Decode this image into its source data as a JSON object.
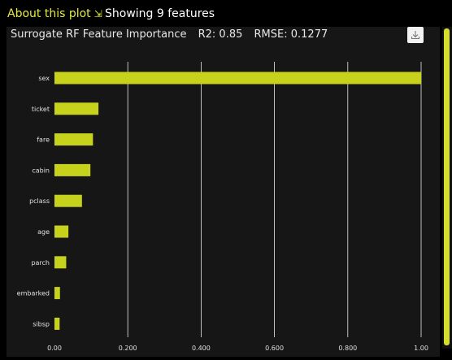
{
  "header": {
    "about_label": "About this plot",
    "about_arrow": "⇲",
    "feature_count": "Showing 9 features"
  },
  "panel": {
    "title": "Surrogate RF Feature Importance",
    "r2": "R2: 0.85",
    "rmse": "RMSE: 0.1277",
    "download_icon": "download-icon"
  },
  "colors": {
    "bar": "#c6d21c",
    "accent": "#e4ec3c",
    "panel_bg": "#161616",
    "grid": "#e8e8e8"
  },
  "chart_data": {
    "type": "bar",
    "orientation": "horizontal",
    "title": "Surrogate RF Feature Importance",
    "categories": [
      "sex",
      "ticket",
      "fare",
      "cabin",
      "pclass",
      "age",
      "parch",
      "embarked",
      "sibsp"
    ],
    "values": [
      1.0,
      0.12,
      0.105,
      0.098,
      0.075,
      0.038,
      0.032,
      0.015,
      0.014
    ],
    "xlim": [
      0,
      1.0
    ],
    "x_ticks": [
      "0.00",
      "0.200",
      "0.400",
      "0.600",
      "0.800",
      "1.00"
    ],
    "x_tick_values": [
      0,
      0.2,
      0.4,
      0.6,
      0.8,
      1.0
    ],
    "grid": true
  }
}
